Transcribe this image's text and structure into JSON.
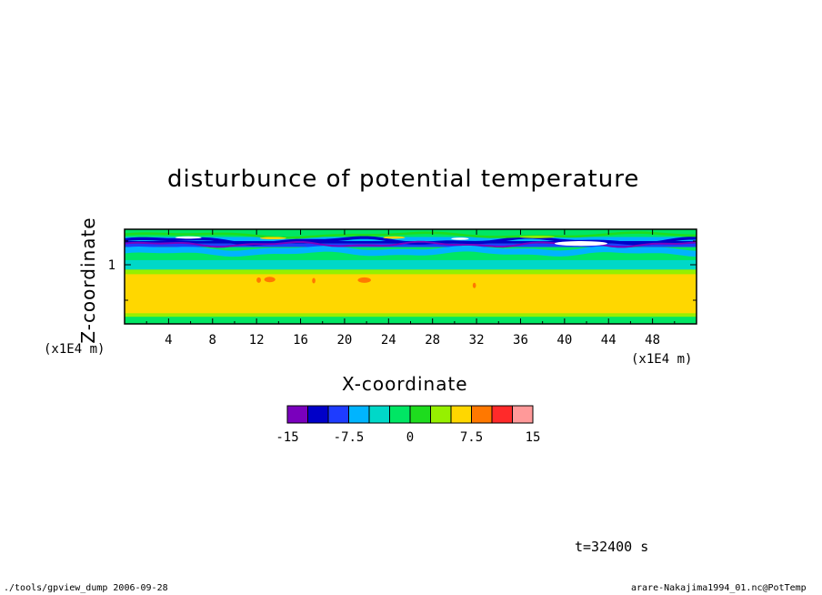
{
  "chart_data": {
    "type": "heatmap",
    "title": "disturbunce of potential temperature",
    "xlabel": "X-coordinate",
    "ylabel": "Z-coordinate",
    "x_unit": "(x1E4 m)",
    "y_unit": "(x1E4 m)",
    "xlim": [
      0,
      52
    ],
    "ylim": [
      0,
      1.6
    ],
    "x_ticks": [
      "4",
      "8",
      "12",
      "16",
      "20",
      "24",
      "28",
      "32",
      "36",
      "40",
      "44",
      "48"
    ],
    "y_ticks": [
      "1"
    ],
    "colorbar": {
      "levels": [
        -15,
        -12.5,
        -10,
        -7.5,
        -5,
        -2.5,
        0,
        2.5,
        5,
        7.5,
        10,
        12.5,
        15
      ],
      "tick_labels": [
        "-15",
        "-7.5",
        "0",
        "7.5",
        "15"
      ],
      "colors": [
        "#7a00bd",
        "#0000c8",
        "#1e3cff",
        "#00b4ff",
        "#00d8c8",
        "#00e664",
        "#1edc1e",
        "#96f000",
        "#ffd700",
        "#ff7800",
        "#ff2a2a",
        "#ff9999"
      ]
    }
  },
  "annotations": {
    "time": "t=32400 s",
    "footer_left": "./tools/gpview_dump  2006-09-28",
    "footer_right": "arare-Nakajima1994_01.nc@PotTemp"
  }
}
